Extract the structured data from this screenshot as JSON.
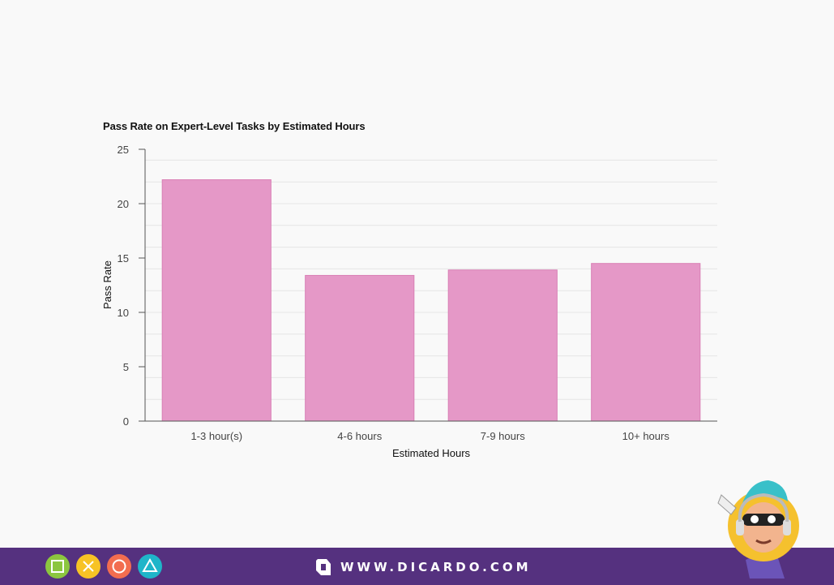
{
  "chart_data": {
    "type": "bar",
    "title": "Pass Rate on Expert-Level Tasks by Estimated Hours",
    "xlabel": "Estimated Hours",
    "ylabel": "Pass Rate",
    "categories": [
      "1-3 hour(s)",
      "4-6 hours",
      "7-9 hours",
      "10+ hours"
    ],
    "values": [
      22.2,
      13.4,
      13.9,
      14.5
    ],
    "ylim": [
      0,
      25
    ],
    "yticks": [
      0,
      5,
      10,
      15,
      20,
      25
    ],
    "bar_color": "#e598c7",
    "grid": true,
    "legend": "none"
  },
  "footer": {
    "brand": "WWW.DICARDO.COM",
    "background": "#55317f",
    "buttons": [
      {
        "name": "square",
        "color": "#8cc63f"
      },
      {
        "name": "cross",
        "color": "#f7c325"
      },
      {
        "name": "circle",
        "color": "#f26d4f"
      },
      {
        "name": "triangle",
        "color": "#1fb5c9"
      }
    ]
  },
  "icons": [
    "dicardo-logo-icon",
    "mascot-icon",
    "square-icon",
    "cross-icon",
    "circle-icon",
    "triangle-icon"
  ]
}
